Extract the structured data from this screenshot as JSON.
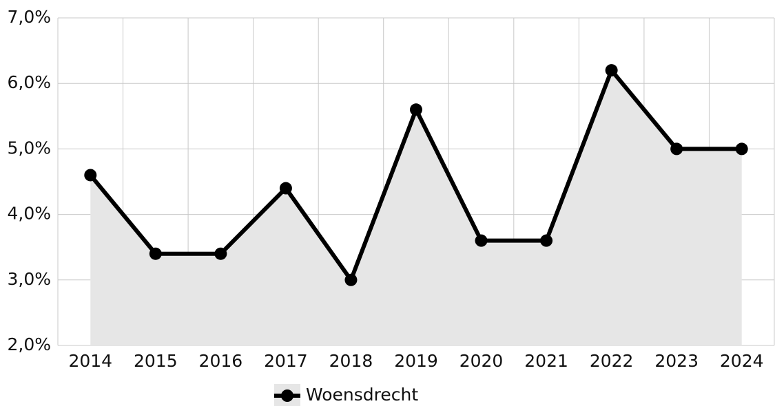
{
  "chart_data": {
    "type": "line",
    "categories": [
      "2014",
      "2015",
      "2016",
      "2017",
      "2018",
      "2019",
      "2020",
      "2021",
      "2022",
      "2023",
      "2024"
    ],
    "series": [
      {
        "name": "Woensdrecht",
        "color": "#000000",
        "area_color": "#e6e6e6",
        "values": [
          4.6,
          3.4,
          3.4,
          4.4,
          3.0,
          5.6,
          3.6,
          3.6,
          6.2,
          5.0,
          5.0
        ]
      }
    ],
    "ylim": [
      2,
      7
    ],
    "yticks": [
      {
        "value": 2,
        "label": "2,0%"
      },
      {
        "value": 3,
        "label": "3,0%"
      },
      {
        "value": 4,
        "label": "4,0%"
      },
      {
        "value": 5,
        "label": "5,0%"
      },
      {
        "value": 6,
        "label": "6,0%"
      },
      {
        "value": 7,
        "label": "7,0%"
      }
    ],
    "grid": true,
    "legend": "bottom"
  }
}
